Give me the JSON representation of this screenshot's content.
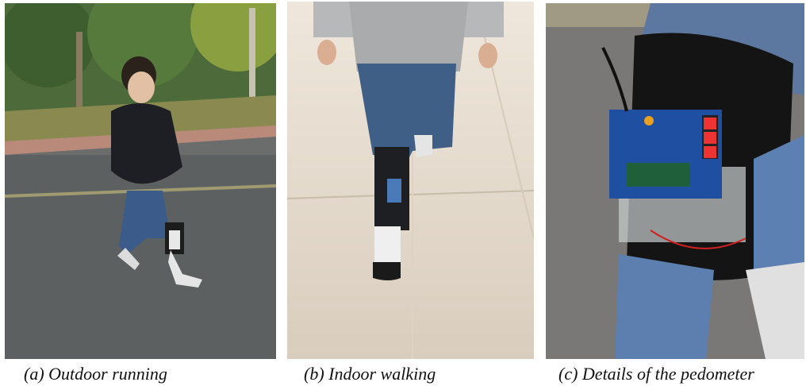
{
  "panels": [
    {
      "caption": "(a) Outdoor running"
    },
    {
      "caption": "(b) Indoor walking"
    },
    {
      "caption": "(c) Details of the pedometer"
    }
  ]
}
